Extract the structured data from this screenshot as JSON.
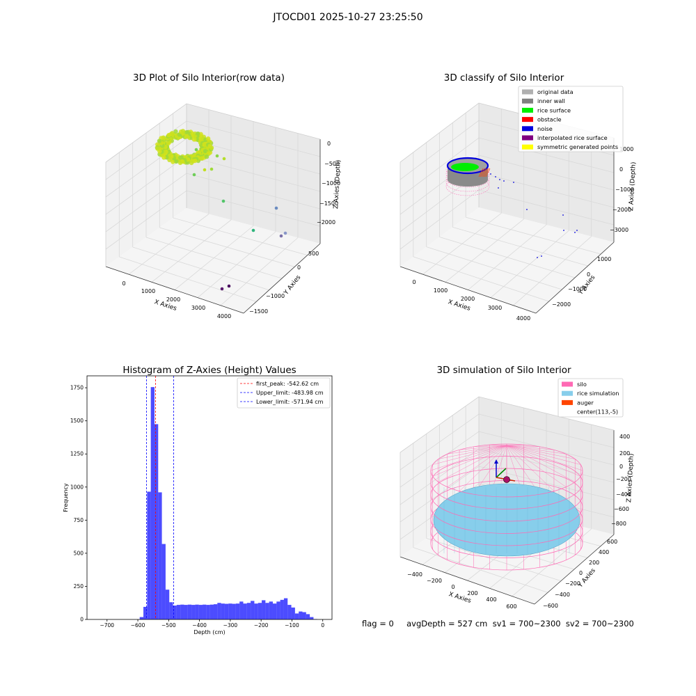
{
  "figure": {
    "suptitle": "JTOCD01 2025-10-27 23:25:50",
    "footer": "flag = 0     avgDepth = 527 cm  sv1 = 700~2300  sv2 = 700~2300"
  },
  "panels": {
    "raw": {
      "title": "3D Plot of Silo Interior(row data)",
      "xlabel": "X Axies",
      "ylabel": "Y Axies",
      "zlabel": "Z Axies (Depth)",
      "xticks": [
        "0",
        "1000",
        "2000",
        "3000",
        "4000"
      ],
      "yticks": [
        "500",
        "0",
        "−1000",
        "−1500"
      ],
      "zticks": [
        "0",
        "−500",
        "−1000",
        "−1500",
        "−2000"
      ],
      "colormap": "viridis"
    },
    "classify": {
      "title": "3D classify of Silo Interior",
      "xlabel": "X Axies",
      "ylabel": "Y Axies",
      "zlabel": "Z Axies (Depth)",
      "xticks": [
        "0",
        "1000",
        "2000",
        "3000",
        "4000"
      ],
      "yticks": [
        "1000",
        "0",
        "−1000",
        "−2000"
      ],
      "zticks": [
        "1000",
        "0",
        "−1000",
        "−2000",
        "−3000"
      ],
      "legend": [
        {
          "label": "original data",
          "color": "#b0b0b0"
        },
        {
          "label": "inner wall",
          "color": "#808080"
        },
        {
          "label": "rice surface",
          "color": "#00ee00"
        },
        {
          "label": "obstacle",
          "color": "#ff0000"
        },
        {
          "label": "noise",
          "color": "#0000dd"
        },
        {
          "label": "interpolated rice surface",
          "color": "#800080"
        },
        {
          "label": "symmetric generated points",
          "color": "#ffff00"
        }
      ]
    },
    "simulation": {
      "title": "3D simulation of Silo Interior",
      "xlabel": "X Axies",
      "ylabel": "Y Axies",
      "zlabel": "Z Axies (Depth)",
      "xticks": [
        "−400",
        "−200",
        "0",
        "200",
        "400",
        "600"
      ],
      "yticks": [
        "600",
        "400",
        "200",
        "0",
        "−200",
        "−400",
        "−600"
      ],
      "zticks": [
        "400",
        "200",
        "0",
        "−200",
        "−400",
        "−600",
        "−800"
      ],
      "legend": [
        {
          "label": "silo",
          "color": "#ff69b4"
        },
        {
          "label": "rice simulation",
          "color": "#87ceeb"
        },
        {
          "label": "auger",
          "color": "#ff4500"
        },
        {
          "label": "center(113,-5)",
          "color": ""
        }
      ],
      "colors": {
        "silo": "#ff69b4",
        "rice": "#87ceeb",
        "auger": "#ff4500"
      }
    }
  },
  "chart_data": {
    "type": "bar",
    "title": "Histogram of Z-Axies (Height) Values",
    "xlabel": "Depth (cm)",
    "ylabel": "Frequency",
    "xlim": [
      -765,
      30
    ],
    "ylim": [
      0,
      1840
    ],
    "xticks": [
      -700,
      -600,
      -500,
      -400,
      -300,
      -200,
      -100,
      0
    ],
    "yticks": [
      0,
      250,
      500,
      750,
      1000,
      1250,
      1500,
      1750
    ],
    "bin_width": 12,
    "bins": [
      {
        "x0": -594,
        "v": 18
      },
      {
        "x0": -582,
        "v": 95
      },
      {
        "x0": -570,
        "v": 965
      },
      {
        "x0": -558,
        "v": 1755
      },
      {
        "x0": -546,
        "v": 1475
      },
      {
        "x0": -534,
        "v": 960
      },
      {
        "x0": -522,
        "v": 570
      },
      {
        "x0": -510,
        "v": 225
      },
      {
        "x0": -498,
        "v": 130
      },
      {
        "x0": -486,
        "v": 105
      },
      {
        "x0": -474,
        "v": 110
      },
      {
        "x0": -462,
        "v": 112
      },
      {
        "x0": -450,
        "v": 110
      },
      {
        "x0": -438,
        "v": 112
      },
      {
        "x0": -426,
        "v": 110
      },
      {
        "x0": -414,
        "v": 112
      },
      {
        "x0": -402,
        "v": 110
      },
      {
        "x0": -390,
        "v": 112
      },
      {
        "x0": -378,
        "v": 110
      },
      {
        "x0": -366,
        "v": 112
      },
      {
        "x0": -354,
        "v": 115
      },
      {
        "x0": -342,
        "v": 125
      },
      {
        "x0": -330,
        "v": 120
      },
      {
        "x0": -318,
        "v": 118
      },
      {
        "x0": -306,
        "v": 120
      },
      {
        "x0": -294,
        "v": 118
      },
      {
        "x0": -282,
        "v": 120
      },
      {
        "x0": -270,
        "v": 135
      },
      {
        "x0": -258,
        "v": 120
      },
      {
        "x0": -246,
        "v": 125
      },
      {
        "x0": -234,
        "v": 140
      },
      {
        "x0": -222,
        "v": 120
      },
      {
        "x0": -210,
        "v": 125
      },
      {
        "x0": -198,
        "v": 145
      },
      {
        "x0": -186,
        "v": 125
      },
      {
        "x0": -174,
        "v": 135
      },
      {
        "x0": -162,
        "v": 120
      },
      {
        "x0": -150,
        "v": 135
      },
      {
        "x0": -138,
        "v": 148
      },
      {
        "x0": -126,
        "v": 160
      },
      {
        "x0": -114,
        "v": 110
      },
      {
        "x0": -102,
        "v": 90
      },
      {
        "x0": -90,
        "v": 45
      },
      {
        "x0": -78,
        "v": 60
      },
      {
        "x0": -66,
        "v": 55
      },
      {
        "x0": -54,
        "v": 40
      },
      {
        "x0": -42,
        "v": 18
      },
      {
        "x0": -30,
        "v": 3
      }
    ],
    "bar_color": "#0000ff",
    "vlines": [
      {
        "label": "first_peak: -542.62 cm",
        "x": -542.62,
        "color": "#ff0000"
      },
      {
        "label": "Upper_limit: -483.98 cm",
        "x": -483.98,
        "color": "#0000ff"
      },
      {
        "label": "Lower_limit: -571.94 cm",
        "x": -571.94,
        "color": "#0000ff"
      }
    ],
    "legend_position": "upper right"
  }
}
